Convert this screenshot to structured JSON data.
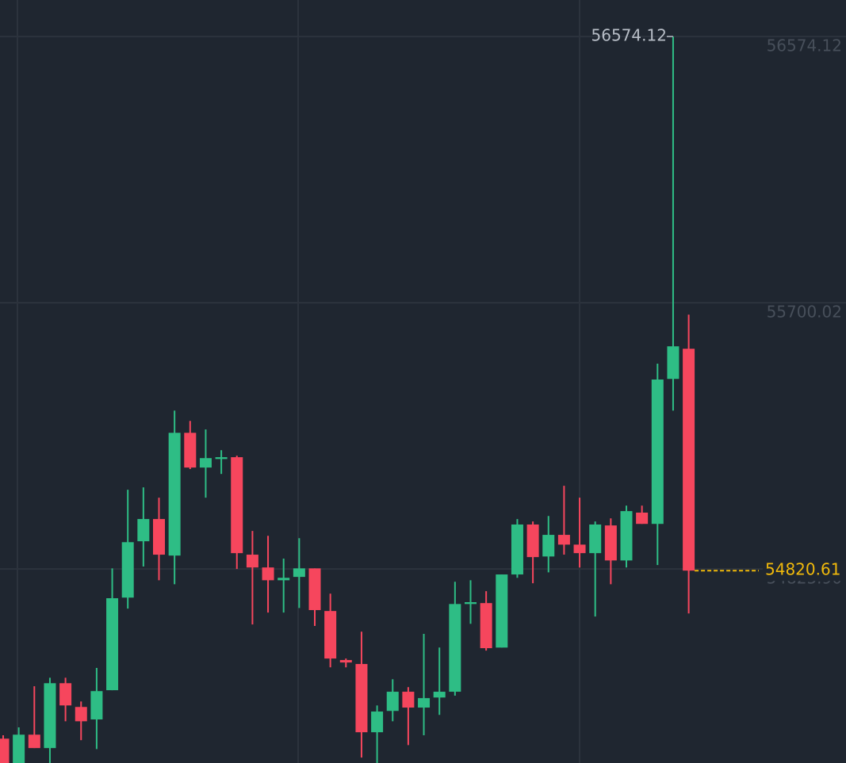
{
  "chart_data": {
    "type": "candlestick",
    "open": [
      54269,
      54189,
      54282,
      54238,
      54451,
      54373,
      54332,
      54428,
      54732,
      54917,
      54990,
      54870,
      55273,
      55159,
      55187,
      55193,
      54873,
      54831,
      54789,
      54800,
      54828,
      54688,
      54527,
      54514,
      54290,
      54360,
      54423,
      54371,
      54404,
      54423,
      54711,
      54714,
      54568,
      54808,
      54972,
      54867,
      54938,
      54906,
      54878,
      54969,
      54854,
      55011,
      54974,
      55450,
      55549
    ],
    "high": [
      54280,
      54306,
      54441,
      54469,
      54469,
      54391,
      54501,
      54828,
      55086,
      55094,
      55060,
      55346,
      55312,
      55284,
      55216,
      55198,
      54951,
      54935,
      54860,
      54927,
      54828,
      54745,
      54532,
      54620,
      54378,
      54464,
      54438,
      54613,
      54568,
      54784,
      54789,
      54753,
      54808,
      54990,
      54982,
      55000,
      55099,
      55060,
      54982,
      54992,
      55034,
      55034,
      55500,
      56574.12,
      55661
    ],
    "low": [
      54189,
      54189,
      54238,
      54189,
      54326,
      54264,
      54235,
      54428,
      54696,
      54834,
      54789,
      54776,
      55154,
      55060,
      55138,
      54826,
      54644,
      54683,
      54683,
      54698,
      54639,
      54503,
      54503,
      54207,
      54189,
      54326,
      54248,
      54280,
      54347,
      54410,
      54646,
      54558,
      54568,
      54797,
      54779,
      54815,
      54873,
      54831,
      54670,
      54776,
      54831,
      54974,
      54839,
      55346,
      54680
    ],
    "close": [
      54189,
      54282,
      54238,
      54451,
      54378,
      54326,
      54425,
      54730,
      54914,
      54990,
      54873,
      55273,
      55159,
      55190,
      55193,
      54878,
      54831,
      54789,
      54797,
      54828,
      54691,
      54532,
      54519,
      54290,
      54358,
      54423,
      54371,
      54402,
      54423,
      54711,
      54717,
      54566,
      54808,
      54972,
      54865,
      54938,
      54906,
      54878,
      54972,
      54854,
      55016,
      54974,
      55448,
      55557,
      54820.61
    ],
    "up_color": "#2ebd85",
    "down_color": "#f6465d",
    "last_price_color": "#f0b90b",
    "ylim": [
      54189,
      56694
    ],
    "yticks": [
      {
        "value": 54825.9,
        "label": "54825.90"
      },
      55700.02,
      56574.12
    ],
    "grid": true
  }
}
